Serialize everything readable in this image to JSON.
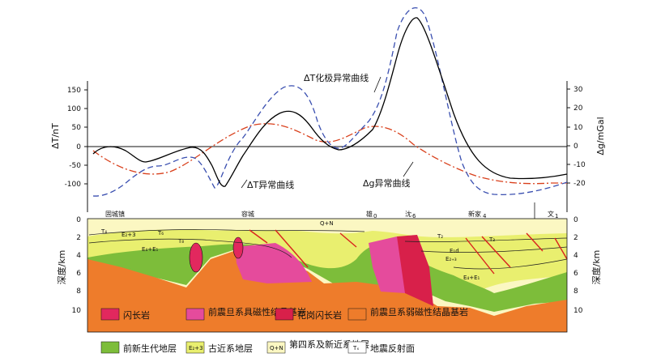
{
  "upper_chart": {
    "left_axis_label": "ΔT/nT",
    "right_axis_label": "Δg/mGal",
    "left_ticks": [
      "150",
      "100",
      "50",
      "0",
      "-50",
      "-100"
    ],
    "right_ticks": [
      "30",
      "20",
      "10",
      "0",
      "-10",
      "-20"
    ],
    "curve_labels": {
      "rtp": "ΔT化极异常曲线",
      "dt": "ΔT异常曲线",
      "dg": "Δg异常曲线"
    },
    "colors": {
      "rtp": "#000000",
      "dt": "#3a4fb0",
      "dg": "#d9401c"
    }
  },
  "section": {
    "place_names": [
      "固城镇",
      "容城",
      "雄",
      "沈",
      "新家",
      "文"
    ],
    "place_subscripts": {
      "雄": "0",
      "沈": "6",
      "新家": "4",
      "文": "1"
    },
    "depth_ticks": [
      "0",
      "2",
      "4",
      "6",
      "8",
      "10"
    ],
    "depth_label": "深度/km",
    "formation_labels": [
      "T₄",
      "T₆",
      "E₂+3",
      "E₄+E₁",
      "T₈",
      "Q+N",
      "T₂",
      "E₁d",
      "E₄+E₁",
      "E₂₊₃",
      "T₃"
    ]
  },
  "legend": [
    {
      "label": "闪长岩",
      "color": "#e2285e"
    },
    {
      "label": "前震旦系具磁性结晶基岩",
      "color": "#e54b9c"
    },
    {
      "label": "花岗闪长岩",
      "color": "#d8204a"
    },
    {
      "label": "前震旦系弱磁性结晶基岩",
      "color": "#ee7c2b"
    },
    {
      "label": "前新生代地层",
      "color": "#7dbd3a"
    },
    {
      "label": "古近系地层",
      "color": "#e9ef6f",
      "swatch_text": "E₂+3"
    },
    {
      "label": "第四系及新近系地层",
      "color": "#fbf7c2",
      "swatch_text": "Q+N"
    },
    {
      "label": "地震反射面",
      "color": "#ffffff",
      "swatch_text": "Tₓ"
    }
  ]
}
